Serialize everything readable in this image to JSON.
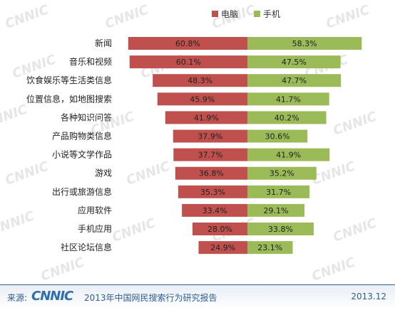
{
  "chart_data": {
    "type": "bar",
    "orientation": "horizontal-diverging",
    "title": "",
    "categories": [
      "新闻",
      "音乐和视频",
      "饮食娱乐等生活类信息",
      "位置信息，如地图搜索",
      "各种知识问答",
      "产品购物类信息",
      "小说等文学作品",
      "游戏",
      "出行或旅游信息",
      "应用软件",
      "手机应用",
      "社区论坛信息"
    ],
    "series": [
      {
        "name": "电脑",
        "color": "#c0504d",
        "values": [
          60.8,
          60.1,
          48.3,
          45.9,
          41.9,
          37.9,
          37.7,
          36.8,
          35.3,
          33.4,
          28.0,
          24.9
        ]
      },
      {
        "name": "手机",
        "color": "#9bbb59",
        "values": [
          58.3,
          47.5,
          47.7,
          41.7,
          40.2,
          30.6,
          41.9,
          35.2,
          31.7,
          29.1,
          33.8,
          23.1
        ]
      }
    ],
    "value_format": "percent-1dp",
    "legend_position": "top-right",
    "grid": false
  },
  "watermark": "CNNIC",
  "footer": {
    "source_label": "来源:",
    "logo_text": "CNNIC",
    "report_title": "2013年中国网民搜索行为研究报告",
    "date": "2013.12"
  }
}
